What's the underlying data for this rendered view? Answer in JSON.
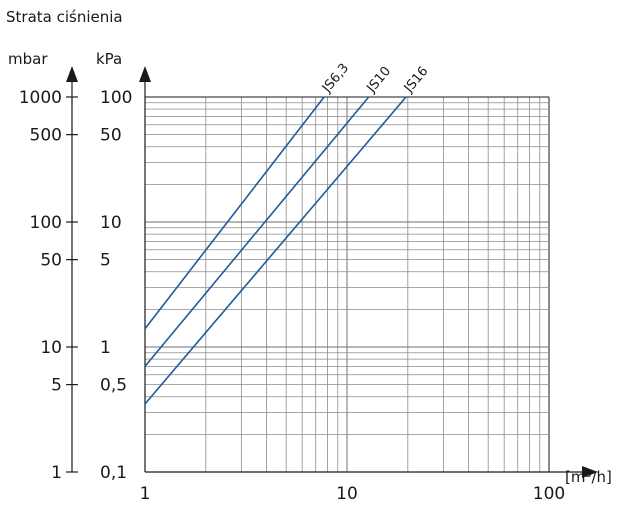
{
  "chart_data": {
    "type": "line",
    "title": "Strata ciśnienia",
    "y_units": [
      "mbar",
      "kPa"
    ],
    "xlabel": "[m³/h]",
    "x_scale": "log",
    "y_scale": "log",
    "xlim": [
      1,
      100
    ],
    "ylim_kpa": [
      0.1,
      100
    ],
    "x_ticks": [
      {
        "value": 1,
        "label": "1"
      },
      {
        "value": 10,
        "label": "10"
      },
      {
        "value": 100,
        "label": "100"
      }
    ],
    "y_ticks": [
      {
        "kpa": 100,
        "label_kpa": "100",
        "label_mbar": "1000"
      },
      {
        "kpa": 50,
        "label_kpa": "50",
        "label_mbar": "500"
      },
      {
        "kpa": 10,
        "label_kpa": "10",
        "label_mbar": "100"
      },
      {
        "kpa": 5,
        "label_kpa": "5",
        "label_mbar": "50"
      },
      {
        "kpa": 1,
        "label_kpa": "1",
        "label_mbar": "10"
      },
      {
        "kpa": 0.5,
        "label_kpa": "0,5",
        "label_mbar": "5"
      },
      {
        "kpa": 0.1,
        "label_kpa": "0,1",
        "label_mbar": "1"
      }
    ],
    "grid": true,
    "colors": {
      "series": "#1f5a9e",
      "axis": "#1a1a1a",
      "grid_minor": "#8c8c8c"
    },
    "series": [
      {
        "name": "JS6,3",
        "x": [
          1,
          7.7
        ],
        "y": [
          1.4,
          100
        ]
      },
      {
        "name": "JS10",
        "x": [
          1,
          12.8
        ],
        "y": [
          0.7,
          100
        ]
      },
      {
        "name": "JS16",
        "x": [
          1,
          19.6
        ],
        "y": [
          0.35,
          100
        ]
      }
    ]
  }
}
